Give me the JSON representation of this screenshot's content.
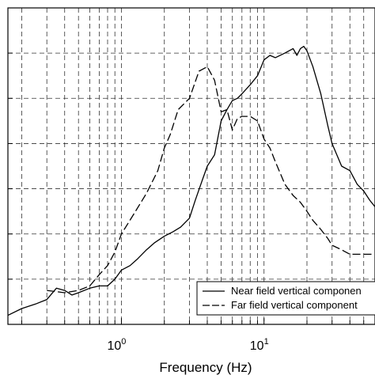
{
  "chart_data": {
    "type": "line",
    "xscale": "log",
    "xlim": [
      0.16,
      60
    ],
    "ylim": [
      0,
      7
    ],
    "grid": true,
    "xlabel": "Frequency (Hz)",
    "ylabel": "",
    "x_tick_labels": [
      {
        "base": "10",
        "exp": "0",
        "value": 1
      },
      {
        "base": "10",
        "exp": "1",
        "value": 10
      }
    ],
    "legend_position": "bottom-right",
    "series": [
      {
        "name": "Near field vertical componen",
        "style": "solid",
        "points": [
          [
            0.16,
            0.2
          ],
          [
            0.2,
            0.35
          ],
          [
            0.25,
            0.45
          ],
          [
            0.3,
            0.55
          ],
          [
            0.35,
            0.8
          ],
          [
            0.4,
            0.75
          ],
          [
            0.45,
            0.65
          ],
          [
            0.5,
            0.7
          ],
          [
            0.6,
            0.8
          ],
          [
            0.7,
            0.85
          ],
          [
            0.8,
            0.85
          ],
          [
            0.9,
            1.0
          ],
          [
            1.0,
            1.2
          ],
          [
            1.15,
            1.3
          ],
          [
            1.3,
            1.45
          ],
          [
            1.5,
            1.65
          ],
          [
            1.7,
            1.8
          ],
          [
            2.0,
            1.95
          ],
          [
            2.3,
            2.05
          ],
          [
            2.6,
            2.15
          ],
          [
            3.0,
            2.35
          ],
          [
            3.3,
            2.75
          ],
          [
            3.7,
            3.2
          ],
          [
            4.0,
            3.5
          ],
          [
            4.5,
            3.75
          ],
          [
            5.0,
            4.5
          ],
          [
            5.5,
            4.75
          ],
          [
            6.0,
            4.95
          ],
          [
            6.5,
            5.0
          ],
          [
            7.0,
            5.1
          ],
          [
            8.0,
            5.3
          ],
          [
            9.0,
            5.5
          ],
          [
            10.0,
            5.85
          ],
          [
            11.0,
            5.95
          ],
          [
            12.0,
            5.9
          ],
          [
            14.0,
            6.0
          ],
          [
            16.0,
            6.1
          ],
          [
            17.0,
            5.95
          ],
          [
            18.0,
            6.1
          ],
          [
            19.0,
            6.15
          ],
          [
            20.0,
            6.05
          ],
          [
            22.0,
            5.7
          ],
          [
            25.0,
            5.1
          ],
          [
            28.0,
            4.4
          ],
          [
            30.0,
            4.0
          ],
          [
            35.0,
            3.5
          ],
          [
            40.0,
            3.4
          ],
          [
            45.0,
            3.1
          ],
          [
            50.0,
            2.95
          ],
          [
            55.0,
            2.75
          ],
          [
            60.0,
            2.6
          ]
        ]
      },
      {
        "name": "Far field vertical component",
        "style": "dashed",
        "points": [
          [
            0.3,
            0.75
          ],
          [
            0.4,
            0.7
          ],
          [
            0.5,
            0.75
          ],
          [
            0.6,
            0.85
          ],
          [
            0.7,
            1.1
          ],
          [
            0.8,
            1.3
          ],
          [
            0.9,
            1.6
          ],
          [
            1.0,
            2.0
          ],
          [
            1.2,
            2.4
          ],
          [
            1.5,
            2.9
          ],
          [
            1.8,
            3.4
          ],
          [
            2.0,
            3.9
          ],
          [
            2.2,
            4.2
          ],
          [
            2.5,
            4.75
          ],
          [
            3.0,
            5.0
          ],
          [
            3.5,
            5.6
          ],
          [
            4.0,
            5.7
          ],
          [
            4.5,
            5.4
          ],
          [
            5.0,
            4.7
          ],
          [
            5.5,
            4.75
          ],
          [
            6.0,
            4.3
          ],
          [
            6.5,
            4.55
          ],
          [
            7.0,
            4.6
          ],
          [
            8.0,
            4.6
          ],
          [
            9.0,
            4.5
          ],
          [
            10.0,
            4.1
          ],
          [
            11.0,
            3.9
          ],
          [
            12.0,
            3.6
          ],
          [
            14.0,
            3.1
          ],
          [
            16.0,
            2.85
          ],
          [
            18.0,
            2.7
          ],
          [
            20.0,
            2.5
          ],
          [
            22.0,
            2.3
          ],
          [
            25.0,
            2.1
          ],
          [
            28.0,
            1.9
          ],
          [
            30.0,
            1.75
          ],
          [
            35.0,
            1.65
          ],
          [
            40.0,
            1.55
          ],
          [
            45.0,
            1.55
          ],
          [
            50.0,
            1.55
          ],
          [
            60.0,
            1.55
          ]
        ]
      }
    ]
  }
}
